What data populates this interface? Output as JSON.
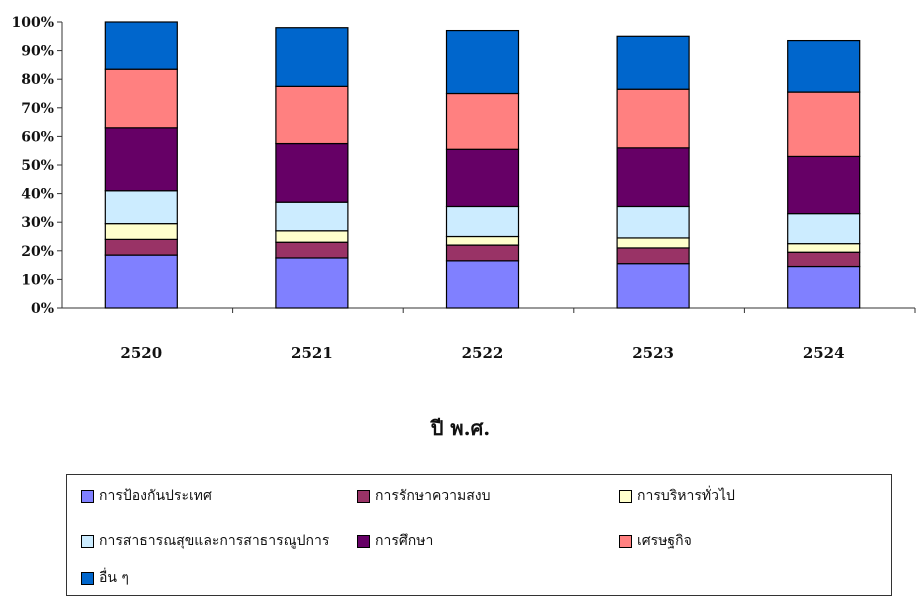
{
  "chart_data": {
    "type": "bar",
    "stacked": true,
    "categories": [
      "2520",
      "2521",
      "2522",
      "2523",
      "2524"
    ],
    "series": [
      {
        "name": "การป้องกันประเทศ",
        "color": "#8080ff",
        "values": [
          18.5,
          17.5,
          16.5,
          15.5,
          14.5
        ]
      },
      {
        "name": "การรักษาความสงบ",
        "color": "#993366",
        "values": [
          5.5,
          5.5,
          5.5,
          5.5,
          5.0
        ]
      },
      {
        "name": "การบริหารทั่วไป",
        "color": "#ffffcc",
        "values": [
          5.5,
          4.0,
          3.0,
          3.5,
          3.0
        ]
      },
      {
        "name": "การสาธารณสุขและการสาธารณูปการ",
        "color": "#ccecff",
        "values": [
          11.5,
          10.0,
          10.5,
          11.0,
          10.5
        ]
      },
      {
        "name": "การศึกษา",
        "color": "#660066",
        "values": [
          22.0,
          20.5,
          20.0,
          20.5,
          20.0
        ]
      },
      {
        "name": "เศรษฐกิจ",
        "color": "#ff8080",
        "values": [
          20.5,
          20.0,
          19.5,
          20.5,
          22.5
        ]
      },
      {
        "name": "อื่น ๆ",
        "color": "#0066cc",
        "values": [
          16.5,
          20.5,
          22.0,
          18.5,
          18.0
        ]
      }
    ],
    "yticks": [
      "0%",
      "10%",
      "20%",
      "30%",
      "40%",
      "50%",
      "60%",
      "70%",
      "80%",
      "90%",
      "100%"
    ],
    "ylim": [
      0,
      100
    ],
    "xlabel": "ปี พ.ศ.",
    "legend_position": "bottom"
  }
}
